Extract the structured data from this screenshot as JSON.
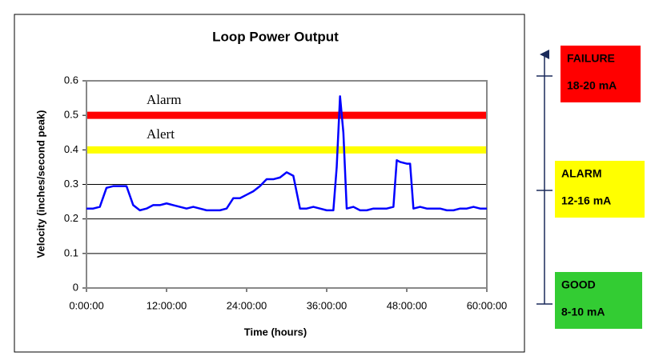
{
  "chart_data": {
    "type": "line",
    "title": "Loop Power Output",
    "x_label": "Time (hours)",
    "y_label": "Velocity (inches/second peak)",
    "x": [
      0,
      1,
      2,
      3,
      4,
      5,
      6,
      7,
      8,
      9,
      10,
      11,
      12,
      13,
      14,
      15,
      16,
      17,
      18,
      19,
      20,
      21,
      22,
      23,
      24,
      25,
      26,
      27,
      28,
      29,
      30,
      31,
      32,
      33,
      34,
      35,
      36,
      37,
      37.5,
      38,
      38.5,
      39,
      40,
      41,
      42,
      43,
      44,
      45,
      46,
      46.5,
      47,
      48,
      48.5,
      49,
      50,
      51,
      52,
      53,
      54,
      55,
      56,
      57,
      58,
      59,
      60
    ],
    "series": [
      {
        "color": "#0000ff",
        "values": [
          0.23,
          0.23,
          0.235,
          0.29,
          0.295,
          0.295,
          0.295,
          0.24,
          0.225,
          0.23,
          0.24,
          0.24,
          0.245,
          0.24,
          0.235,
          0.23,
          0.235,
          0.23,
          0.225,
          0.225,
          0.225,
          0.23,
          0.26,
          0.26,
          0.27,
          0.28,
          0.295,
          0.315,
          0.315,
          0.32,
          0.335,
          0.325,
          0.23,
          0.23,
          0.235,
          0.23,
          0.225,
          0.225,
          0.35,
          0.555,
          0.45,
          0.23,
          0.235,
          0.225,
          0.225,
          0.23,
          0.23,
          0.23,
          0.235,
          0.37,
          0.365,
          0.36,
          0.36,
          0.23,
          0.235,
          0.23,
          0.23,
          0.23,
          0.225,
          0.225,
          0.23,
          0.23,
          0.235,
          0.23,
          0.23
        ]
      }
    ],
    "thresholds": [
      {
        "name": "Alarm",
        "value": 0.5,
        "color": "#ff0000"
      },
      {
        "name": "Alert",
        "value": 0.4,
        "color": "#ffff00"
      }
    ],
    "xlim": [
      0,
      60
    ],
    "xticks": [
      {
        "value": 0,
        "label": "0:00:00"
      },
      {
        "value": 12,
        "label": "12:00:00"
      },
      {
        "value": 24,
        "label": "24:00:00"
      },
      {
        "value": 36,
        "label": "36:00:00"
      },
      {
        "value": 48,
        "label": "48:00:00"
      },
      {
        "value": 60,
        "label": "60:00:00"
      }
    ],
    "ylim": [
      0,
      0.6
    ],
    "yticks": [
      0,
      0.1,
      0.2,
      0.3,
      0.4,
      0.5,
      0.6
    ],
    "grid": true
  },
  "status_levels": [
    {
      "name": "FAILURE",
      "range": "18-20 mA",
      "color": "#ff0000"
    },
    {
      "name": "ALARM",
      "range": "12-16 mA",
      "color": "#ffff00"
    },
    {
      "name": "GOOD",
      "range": "8-10 mA",
      "color": "#33cc33"
    }
  ]
}
